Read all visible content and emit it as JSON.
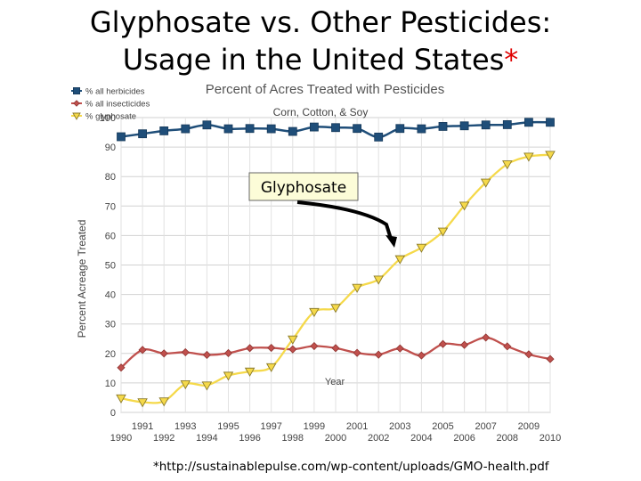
{
  "slide": {
    "title_line1": "Glyphosate vs. Other Pesticides:",
    "title_line2": "Usage in the United States",
    "title_asterisk": "*",
    "source": "*http://sustainablepulse.com/wp-content/uploads/GMO-health.pdf"
  },
  "annotation": {
    "label": "Glyphosate",
    "arrow": "curved-arrow-icon"
  },
  "chart_data": {
    "type": "line",
    "title": "Percent of Acres Treated with Pesticides",
    "subtitle": "Corn, Cotton, & Soy",
    "xlabel": "Year",
    "ylabel": "Percent Acreage Treated",
    "x": [
      1990,
      1991,
      1992,
      1993,
      1994,
      1995,
      1996,
      1997,
      1998,
      1999,
      2000,
      2001,
      2002,
      2003,
      2004,
      2005,
      2006,
      2007,
      2008,
      2009,
      2010
    ],
    "xlim": [
      1990,
      2010
    ],
    "ylim": [
      0,
      100
    ],
    "yticks": [
      0,
      10,
      20,
      30,
      40,
      50,
      60,
      70,
      80,
      90,
      100
    ],
    "grid": true,
    "legend_position": "top-left",
    "series": [
      {
        "name": "% all herbicides",
        "color": "#1f4e79",
        "marker": "square",
        "values": [
          93.5,
          94.5,
          95.5,
          96.2,
          97.5,
          96.2,
          96.3,
          96.2,
          95.3,
          96.8,
          96.6,
          96.3,
          93.4,
          96.3,
          96.2,
          97.0,
          97.2,
          97.5,
          97.6,
          98.4,
          98.4
        ]
      },
      {
        "name": "% all insecticides",
        "color": "#c0504d",
        "marker": "diamond",
        "values": [
          15.2,
          21.2,
          20.0,
          20.4,
          19.5,
          20.1,
          21.8,
          21.9,
          21.4,
          22.5,
          21.8,
          20.2,
          19.6,
          21.7,
          19.3,
          23.2,
          22.9,
          25.4,
          22.4,
          19.7,
          18.1
        ]
      },
      {
        "name": "% glyphosate",
        "color": "#f5d94a",
        "marker": "triangle-down",
        "values": [
          4.8,
          3.5,
          3.8,
          9.6,
          9.2,
          12.5,
          13.9,
          15.4,
          24.8,
          34.1,
          35.5,
          42.3,
          45.1,
          52.0,
          55.9,
          61.4,
          70.2,
          78.0,
          84.2,
          86.8,
          87.4
        ]
      }
    ]
  }
}
